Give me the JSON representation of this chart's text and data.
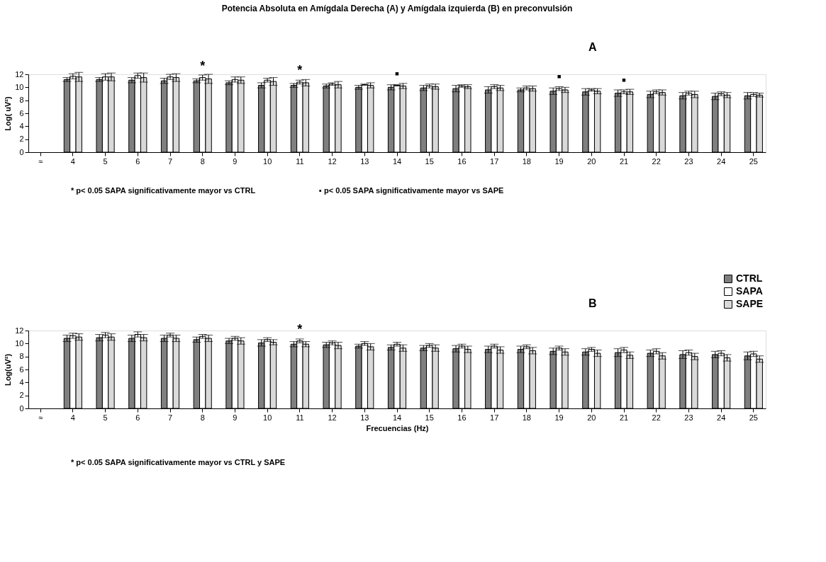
{
  "chart_data": [
    {
      "type": "bar",
      "title": "Potencia Absoluta en Amígdala Derecha (A) y Amígdala izquierda (B)  en preconvulsión",
      "ylabel": "Log( uV²)",
      "categories": [
        "≈",
        "4",
        "5",
        "6",
        "7",
        "8",
        "9",
        "10",
        "11",
        "12",
        "13",
        "14",
        "15",
        "16",
        "17",
        "18",
        "19",
        "20",
        "21",
        "22",
        "23",
        "24",
        "25"
      ],
      "series": [
        {
          "color": "#7f7f7f",
          "values": [
            null,
            11.2,
            11.2,
            11.1,
            11.0,
            11.0,
            10.7,
            10.3,
            10.3,
            10.2,
            10.0,
            10.0,
            9.9,
            9.8,
            9.6,
            9.6,
            9.4,
            9.3,
            9.1,
            8.9,
            8.7,
            8.6,
            8.7
          ],
          "errors": [
            null,
            0.3,
            0.3,
            0.4,
            0.4,
            0.3,
            0.3,
            0.4,
            0.3,
            0.3,
            0.3,
            0.4,
            0.4,
            0.5,
            0.5,
            0.3,
            0.5,
            0.5,
            0.5,
            0.5,
            0.5,
            0.5,
            0.5
          ]
        },
        {
          "color": "#ffffff",
          "values": [
            null,
            11.7,
            11.6,
            11.8,
            11.6,
            11.5,
            11.2,
            11.1,
            10.8,
            10.5,
            10.4,
            10.3,
            10.2,
            10.2,
            10.1,
            9.9,
            9.8,
            9.6,
            9.3,
            9.3,
            9.1,
            9.0,
            8.9
          ],
          "errors": [
            null,
            0.4,
            0.5,
            0.4,
            0.4,
            0.4,
            0.4,
            0.3,
            0.3,
            0.2,
            0.1,
            0.1,
            0.3,
            0.2,
            0.3,
            0.3,
            0.3,
            0.2,
            0.3,
            0.3,
            0.3,
            0.3,
            0.3
          ]
        },
        {
          "color": "#d9d9d9",
          "values": [
            null,
            11.6,
            11.6,
            11.5,
            11.5,
            11.3,
            11.1,
            10.9,
            10.7,
            10.4,
            10.3,
            10.2,
            10.1,
            10.1,
            9.9,
            9.8,
            9.6,
            9.4,
            9.3,
            9.2,
            8.9,
            8.8,
            8.8
          ],
          "errors": [
            null,
            0.7,
            0.6,
            0.7,
            0.6,
            0.7,
            0.5,
            0.6,
            0.5,
            0.5,
            0.4,
            0.4,
            0.4,
            0.3,
            0.4,
            0.4,
            0.4,
            0.4,
            0.4,
            0.4,
            0.5,
            0.4,
            0.3
          ]
        }
      ],
      "ylim": [
        0,
        12
      ],
      "yticks": [
        0,
        2,
        4,
        6,
        8,
        10,
        12
      ],
      "grid": false,
      "annotations": [
        "A",
        {
          "text": "*",
          "x": "8",
          "y": 11.5
        },
        {
          "text": "*",
          "x": "11",
          "y": 10.8
        },
        {
          "text": "▪",
          "x": "14",
          "y": 10.3
        },
        {
          "text": "▪",
          "x": "19",
          "y": 9.8
        },
        {
          "text": "▪",
          "x": "21",
          "y": 9.3
        },
        "* p< 0.05  SAPA significativamente mayor vs CTRL",
        "▪ p< 0.05  SAPA significativamente mayor  vs SAPE"
      ]
    },
    {
      "type": "bar",
      "xlabel": "Frecuencias (Hz)",
      "ylabel": "Log(uV²)",
      "categories": [
        "≈",
        "4",
        "5",
        "6",
        "7",
        "8",
        "9",
        "10",
        "11",
        "12",
        "13",
        "14",
        "15",
        "16",
        "17",
        "18",
        "19",
        "20",
        "21",
        "22",
        "23",
        "24",
        "25"
      ],
      "series": [
        {
          "name": "CTRL",
          "color": "#7f7f7f",
          "values": [
            null,
            10.8,
            10.9,
            10.8,
            10.8,
            10.6,
            10.4,
            10.1,
            9.9,
            9.8,
            9.6,
            9.4,
            9.3,
            9.2,
            9.1,
            9.1,
            8.8,
            8.7,
            8.6,
            8.5,
            8.3,
            8.3,
            8.1
          ],
          "errors": [
            null,
            0.5,
            0.5,
            0.5,
            0.5,
            0.4,
            0.4,
            0.5,
            0.4,
            0.4,
            0.3,
            0.4,
            0.4,
            0.5,
            0.5,
            0.5,
            0.5,
            0.5,
            0.6,
            0.5,
            0.6,
            0.5,
            0.6
          ]
        },
        {
          "name": "SAPA",
          "color": "#ffffff",
          "values": [
            null,
            11.2,
            11.3,
            11.4,
            11.3,
            11.1,
            10.8,
            10.6,
            10.4,
            10.1,
            10.0,
            9.9,
            9.7,
            9.6,
            9.6,
            9.5,
            9.3,
            9.1,
            9.0,
            8.8,
            8.6,
            8.5,
            8.4
          ],
          "errors": [
            null,
            0.4,
            0.4,
            0.4,
            0.3,
            0.3,
            0.3,
            0.3,
            0.3,
            0.3,
            0.3,
            0.3,
            0.3,
            0.3,
            0.3,
            0.3,
            0.3,
            0.3,
            0.4,
            0.4,
            0.4,
            0.4,
            0.4
          ]
        },
        {
          "name": "SAPE",
          "color": "#d9d9d9",
          "values": [
            null,
            11.0,
            11.0,
            10.9,
            10.8,
            10.8,
            10.4,
            10.2,
            9.9,
            9.7,
            9.5,
            9.3,
            9.3,
            9.1,
            9.0,
            8.9,
            8.7,
            8.5,
            8.2,
            8.1,
            8.0,
            7.8,
            7.6
          ],
          "errors": [
            null,
            0.5,
            0.5,
            0.5,
            0.5,
            0.5,
            0.5,
            0.4,
            0.4,
            0.5,
            0.5,
            0.5,
            0.5,
            0.5,
            0.5,
            0.5,
            0.5,
            0.5,
            0.5,
            0.5,
            0.5,
            0.5,
            0.5
          ]
        }
      ],
      "ylim": [
        0,
        12
      ],
      "yticks": [
        0,
        2,
        4,
        6,
        8,
        10,
        12
      ],
      "grid": false,
      "legend": "top right",
      "annotations": [
        "B",
        {
          "text": "*",
          "x": "11",
          "y": 10.4
        },
        "* p< 0.05 SAPA significativamente mayor vs  CTRL y SAPE"
      ]
    }
  ]
}
